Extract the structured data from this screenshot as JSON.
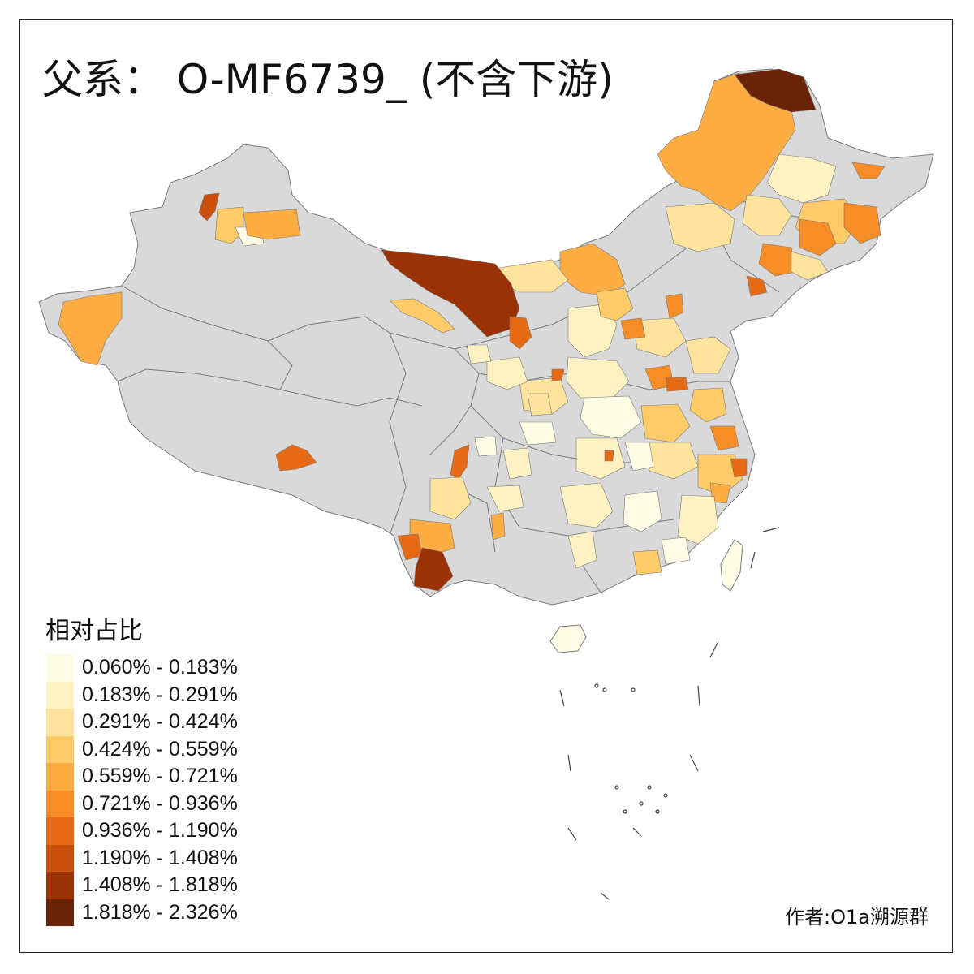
{
  "title": "父系： O-MF6739_ (不含下游)",
  "legend": {
    "title": "相对占比",
    "items": [
      {
        "label": "0.060% - 0.183%",
        "color": "#FFFCE6"
      },
      {
        "label": "0.183% - 0.291%",
        "color": "#FFF2C2"
      },
      {
        "label": "0.291% - 0.424%",
        "color": "#FEE39C"
      },
      {
        "label": "0.424% - 0.559%",
        "color": "#FECB68"
      },
      {
        "label": "0.559% - 0.721%",
        "color": "#FDAD42"
      },
      {
        "label": "0.721% - 0.936%",
        "color": "#F78D27"
      },
      {
        "label": "0.936% - 1.190%",
        "color": "#E66A14"
      },
      {
        "label": "1.190% - 1.408%",
        "color": "#C94F0A"
      },
      {
        "label": "1.408% - 1.818%",
        "color": "#9B3206"
      },
      {
        "label": "1.818% - 2.326%",
        "color": "#6A2307"
      }
    ]
  },
  "credit": "作者:O1a溯源群",
  "colors": {
    "no_data": "#D9D9D9",
    "border": "#7A7A7A",
    "frame": "#222222"
  }
}
